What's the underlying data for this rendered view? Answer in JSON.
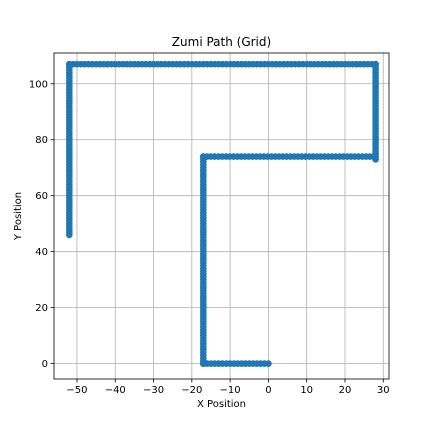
{
  "chart_data": {
    "type": "scatter",
    "title": "Zumi Path (Grid)",
    "xlabel": "X Position",
    "ylabel": "Y Position",
    "xlim": [
      -56,
      31.5
    ],
    "ylim": [
      -5.5,
      111
    ],
    "xticks": [
      -50,
      -40,
      -30,
      -20,
      -10,
      0,
      10,
      20,
      30
    ],
    "yticks": [
      0,
      20,
      40,
      60,
      80,
      100
    ],
    "grid": true,
    "color": "#1f77b4",
    "path_vertices": [
      [
        0,
        0
      ],
      [
        -17,
        0
      ],
      [
        -17,
        74
      ],
      [
        27.5,
        74
      ],
      [
        28,
        73
      ],
      [
        28,
        107
      ],
      [
        -52,
        107
      ],
      [
        -52,
        46
      ]
    ]
  }
}
